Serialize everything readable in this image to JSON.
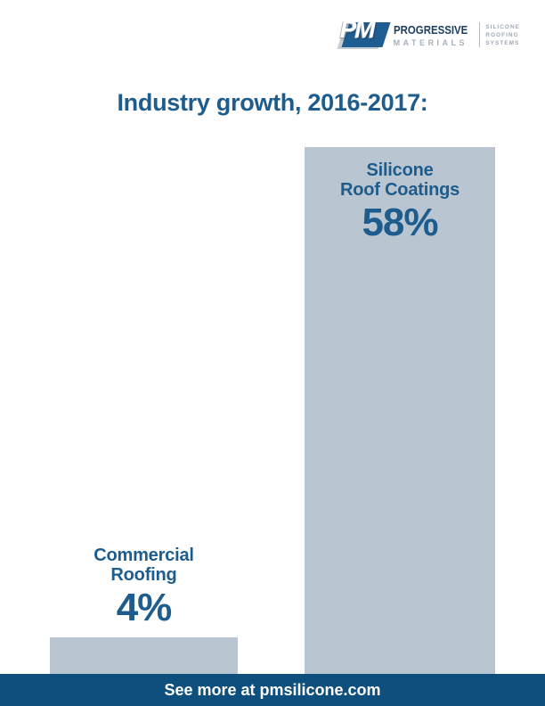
{
  "logo": {
    "monogram": "PM",
    "name_line1": "PROGRESSIVE",
    "name_line2": "MATERIALS",
    "tagline_line1": "SILICONE",
    "tagline_line2": "ROOFING",
    "tagline_line3": "SYSTEMS"
  },
  "title": "Industry growth, 2016-2017:",
  "footer": {
    "text": "See more at pmsilicone.com"
  },
  "colors": {
    "brand_blue": "#1d5c8d",
    "footer_blue": "#0e4f7e",
    "bar_fill": "#b9c6d2",
    "logo_navy": "#1e3d62",
    "logo_gray": "#a7b2bd",
    "emblem_blue": "#1f5e92"
  },
  "chart_data": {
    "type": "bar",
    "title": "Industry growth, 2016-2017:",
    "categories": [
      "Commercial Roofing",
      "Silicone Roof Coatings"
    ],
    "values": [
      4,
      58
    ],
    "unit": "%",
    "ylim": [
      0,
      60
    ],
    "grid": false,
    "legend": false,
    "bars": [
      {
        "label_line1": "Commercial",
        "label_line2": "Roofing",
        "value": 4,
        "value_label": "4%",
        "label_position": "above-bar"
      },
      {
        "label_line1": "Silicone",
        "label_line2": "Roof Coatings",
        "value": 58,
        "value_label": "58%",
        "label_position": "inside-bar-top"
      }
    ]
  }
}
